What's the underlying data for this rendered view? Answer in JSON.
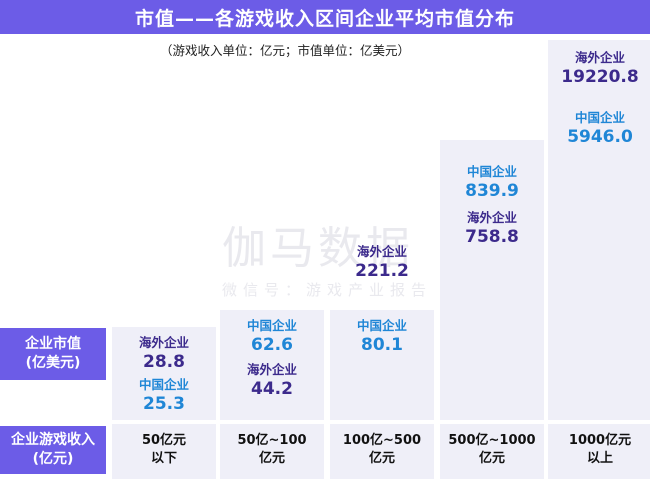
{
  "title": "市值——各游戏收入区间企业平均市值分布",
  "subtitle": "（游戏收入单位：亿元；市值单位：亿美元）",
  "watermark": {
    "logo": "伽马数据",
    "account": "微信号：游戏产业报告"
  },
  "row_labels": {
    "market_cap": [
      "企业市值",
      "(亿美元)"
    ],
    "revenue": [
      "企业游戏收入",
      "(亿元)"
    ]
  },
  "colors": {
    "accent": "#6c5ce7",
    "china": "#1f86d6",
    "overseas": "#3c2a8c",
    "column_bg": "#efeff8"
  },
  "chart_data": {
    "type": "bar",
    "title": "市值——各游戏收入区间企业平均市值分布",
    "units": "（游戏收入单位：亿元；市值单位：亿美元）",
    "categories": [
      [
        "50亿元",
        "以下"
      ],
      [
        "50亿~100",
        "亿元"
      ],
      [
        "100亿~500",
        "亿元"
      ],
      [
        "500亿~1000",
        "亿元"
      ],
      [
        "1000亿元",
        "以上"
      ]
    ],
    "series": [
      {
        "name": "中国企业",
        "values": [
          25.3,
          62.6,
          80.1,
          839.9,
          5946.0
        ],
        "labels": [
          "25.3",
          "62.6",
          "80.1",
          "839.9",
          "5946.0"
        ]
      },
      {
        "name": "海外企业",
        "values": [
          28.8,
          44.2,
          221.2,
          758.8,
          19220.8
        ],
        "labels": [
          "28.8",
          "44.2",
          "221.2",
          "758.8",
          "19220.8"
        ]
      }
    ]
  }
}
